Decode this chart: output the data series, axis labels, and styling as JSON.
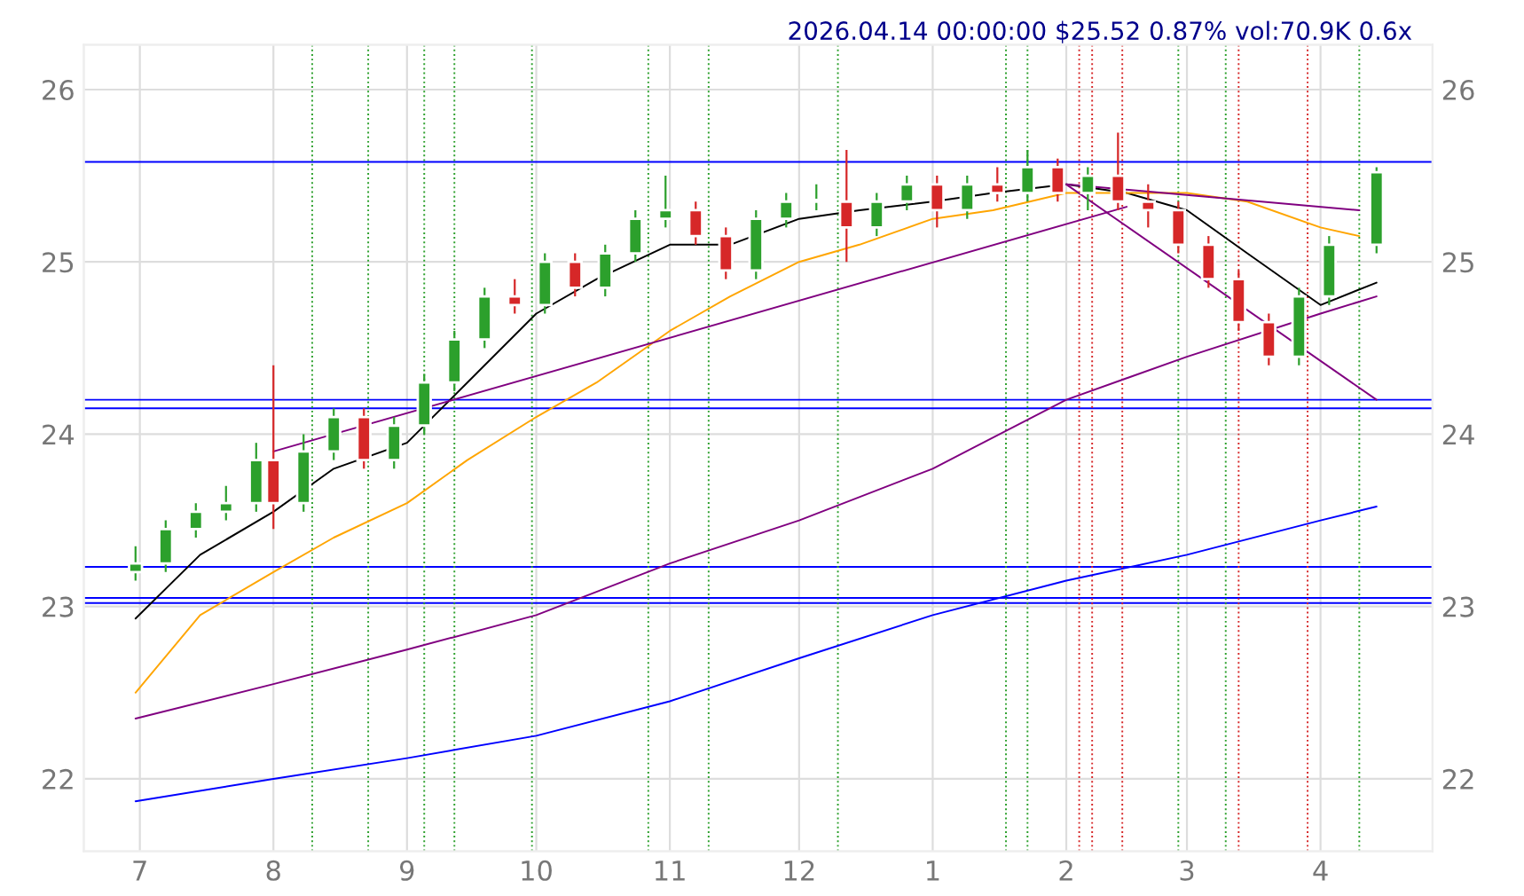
{
  "chart_data": {
    "type": "candlestick",
    "title": "2026.04.14 00:00:00 $25.52 0.87% vol:70.9K 0.6x",
    "x": [
      "2025-06-30",
      "2025-07-07",
      "2025-07-14",
      "2025-07-21",
      "2025-07-28",
      "2025-08-01",
      "2025-08-08",
      "2025-08-15",
      "2025-08-22",
      "2025-08-29",
      "2025-09-05",
      "2025-09-12",
      "2025-09-19",
      "2025-09-26",
      "2025-10-03",
      "2025-10-10",
      "2025-10-17",
      "2025-10-24",
      "2025-10-31",
      "2025-11-07",
      "2025-11-14",
      "2025-11-21",
      "2025-11-28",
      "2025-12-05",
      "2025-12-12",
      "2025-12-19",
      "2025-12-26",
      "2026-01-02",
      "2026-01-09",
      "2026-01-16",
      "2026-01-23",
      "2026-01-30",
      "2026-02-06",
      "2026-02-13",
      "2026-02-20",
      "2026-02-27",
      "2026-03-06",
      "2026-03-13",
      "2026-03-20",
      "2026-03-27",
      "2026-04-03",
      "2026-04-14"
    ],
    "ohlc": [
      [
        23.2,
        23.35,
        23.15,
        23.25
      ],
      [
        23.25,
        23.5,
        23.2,
        23.45
      ],
      [
        23.45,
        23.6,
        23.4,
        23.55
      ],
      [
        23.55,
        23.7,
        23.5,
        23.6
      ],
      [
        23.6,
        23.95,
        23.55,
        23.85
      ],
      [
        23.85,
        24.4,
        23.45,
        23.6
      ],
      [
        23.6,
        24.0,
        23.55,
        23.9
      ],
      [
        23.9,
        24.15,
        23.85,
        24.1
      ],
      [
        24.1,
        24.15,
        23.8,
        23.85
      ],
      [
        23.85,
        24.1,
        23.8,
        24.05
      ],
      [
        24.05,
        24.35,
        24.0,
        24.3
      ],
      [
        24.3,
        24.6,
        24.25,
        24.55
      ],
      [
        24.55,
        24.85,
        24.5,
        24.8
      ],
      [
        24.8,
        24.9,
        24.7,
        24.75
      ],
      [
        24.75,
        25.05,
        24.7,
        25.0
      ],
      [
        25.0,
        25.05,
        24.8,
        24.85
      ],
      [
        24.85,
        25.1,
        24.8,
        25.05
      ],
      [
        25.05,
        25.3,
        25.0,
        25.25
      ],
      [
        25.25,
        25.5,
        25.2,
        25.3
      ],
      [
        25.3,
        25.35,
        25.1,
        25.15
      ],
      [
        25.15,
        25.2,
        24.9,
        24.95
      ],
      [
        24.95,
        25.3,
        24.9,
        25.25
      ],
      [
        25.25,
        25.4,
        25.2,
        25.35
      ],
      [
        25.35,
        25.45,
        25.3,
        25.35
      ],
      [
        25.35,
        25.65,
        25.0,
        25.2
      ],
      [
        25.2,
        25.4,
        25.15,
        25.35
      ],
      [
        25.35,
        25.5,
        25.3,
        25.45
      ],
      [
        25.45,
        25.5,
        25.2,
        25.3
      ],
      [
        25.3,
        25.5,
        25.25,
        25.45
      ],
      [
        25.45,
        25.55,
        25.35,
        25.4
      ],
      [
        25.4,
        25.65,
        25.35,
        25.55
      ],
      [
        25.55,
        25.6,
        25.35,
        25.4
      ],
      [
        25.4,
        25.55,
        25.3,
        25.5
      ],
      [
        25.5,
        25.75,
        25.3,
        25.35
      ],
      [
        25.35,
        25.45,
        25.2,
        25.3
      ],
      [
        25.3,
        25.35,
        25.05,
        25.1
      ],
      [
        25.1,
        25.15,
        24.85,
        24.9
      ],
      [
        24.9,
        24.95,
        24.6,
        24.65
      ],
      [
        24.65,
        24.7,
        24.4,
        24.45
      ],
      [
        24.45,
        24.85,
        24.4,
        24.8
      ],
      [
        24.8,
        25.15,
        24.75,
        25.1
      ],
      [
        25.1,
        25.55,
        25.05,
        25.52
      ]
    ],
    "series": [
      {
        "type": "line",
        "color": "#000000",
        "x": [
          "2025-06-30",
          "2025-07-15",
          "2025-08-01",
          "2025-08-15",
          "2025-09-01",
          "2025-09-15",
          "2025-10-01",
          "2025-10-15",
          "2025-11-01",
          "2025-11-15",
          "2025-12-01",
          "2025-12-15",
          "2026-01-01",
          "2026-01-15",
          "2026-02-01",
          "2026-02-15",
          "2026-03-01",
          "2026-03-15",
          "2026-04-01",
          "2026-04-14"
        ],
        "values": [
          22.93,
          23.3,
          23.55,
          23.8,
          23.95,
          24.3,
          24.7,
          24.9,
          25.1,
          25.1,
          25.25,
          25.3,
          25.35,
          25.4,
          25.45,
          25.4,
          25.3,
          25.05,
          24.75,
          24.88
        ]
      },
      {
        "type": "line",
        "color": "#ffa500",
        "x": [
          "2025-06-30",
          "2025-07-15",
          "2025-08-01",
          "2025-08-15",
          "2025-09-01",
          "2025-09-15",
          "2025-10-01",
          "2025-10-15",
          "2025-11-01",
          "2025-11-15",
          "2025-12-01",
          "2025-12-15",
          "2026-01-01",
          "2026-01-15",
          "2026-02-01",
          "2026-02-15",
          "2026-03-01",
          "2026-03-15",
          "2026-04-01",
          "2026-04-10"
        ],
        "values": [
          22.5,
          22.95,
          23.2,
          23.4,
          23.6,
          23.85,
          24.1,
          24.3,
          24.6,
          24.8,
          25.0,
          25.1,
          25.25,
          25.3,
          25.4,
          25.4,
          25.4,
          25.35,
          25.2,
          25.15
        ]
      },
      {
        "type": "line",
        "color": "#800080",
        "x": [
          "2025-06-30",
          "2025-08-01",
          "2025-09-01",
          "2025-10-01",
          "2025-11-01",
          "2025-12-01",
          "2026-01-01",
          "2026-02-01",
          "2026-03-01",
          "2026-04-01",
          "2026-04-14"
        ],
        "values": [
          22.35,
          22.55,
          22.75,
          22.95,
          23.25,
          23.5,
          23.8,
          24.2,
          24.45,
          24.7,
          24.8
        ]
      },
      {
        "type": "line",
        "color": "#0000ff",
        "x": [
          "2025-06-30",
          "2025-08-01",
          "2025-09-01",
          "2025-10-01",
          "2025-11-01",
          "2025-12-01",
          "2026-01-01",
          "2026-02-01",
          "2026-03-01",
          "2026-04-01",
          "2026-04-14"
        ],
        "values": [
          21.87,
          22.0,
          22.12,
          22.25,
          22.45,
          22.7,
          22.95,
          23.15,
          23.3,
          23.5,
          23.58
        ]
      },
      {
        "type": "line",
        "color": "#800080",
        "x": [
          "2025-08-01",
          "2026-02-15"
        ],
        "values": [
          23.9,
          25.32
        ]
      },
      {
        "type": "line",
        "color": "#800080",
        "x": [
          "2026-02-01",
          "2026-04-14"
        ],
        "values": [
          25.45,
          24.2
        ]
      },
      {
        "type": "line",
        "color": "#800080",
        "x": [
          "2026-02-01",
          "2026-04-10"
        ],
        "values": [
          25.45,
          25.3
        ]
      }
    ],
    "ref_lines": [
      {
        "axis": "y",
        "value": 25.58,
        "color": "#0000ff"
      },
      {
        "axis": "y",
        "value": 24.2,
        "color": "#0000ff"
      },
      {
        "axis": "y",
        "value": 24.15,
        "color": "#0000ff"
      },
      {
        "axis": "y",
        "value": 23.23,
        "color": "#0000ff"
      },
      {
        "axis": "y",
        "value": 23.05,
        "color": "#0000ff"
      },
      {
        "axis": "y",
        "value": 23.02,
        "color": "#0000ff"
      },
      {
        "axis": "x",
        "value": "2025-08-10",
        "color": "#2ca02c",
        "line_style": "dotted"
      },
      {
        "axis": "x",
        "value": "2025-08-23",
        "color": "#2ca02c",
        "line_style": "dotted"
      },
      {
        "axis": "x",
        "value": "2025-09-05",
        "color": "#2ca02c",
        "line_style": "dotted"
      },
      {
        "axis": "x",
        "value": "2025-09-12",
        "color": "#2ca02c",
        "line_style": "dotted"
      },
      {
        "axis": "x",
        "value": "2025-09-30",
        "color": "#2ca02c",
        "line_style": "dotted"
      },
      {
        "axis": "x",
        "value": "2025-10-27",
        "color": "#2ca02c",
        "line_style": "dotted"
      },
      {
        "axis": "x",
        "value": "2025-11-10",
        "color": "#2ca02c",
        "line_style": "dotted"
      },
      {
        "axis": "x",
        "value": "2025-12-10",
        "color": "#2ca02c",
        "line_style": "dotted"
      },
      {
        "axis": "x",
        "value": "2026-01-18",
        "color": "#2ca02c",
        "line_style": "dotted"
      },
      {
        "axis": "x",
        "value": "2026-01-23",
        "color": "#2ca02c",
        "line_style": "dotted"
      },
      {
        "axis": "x",
        "value": "2026-02-04",
        "color": "#d62728",
        "line_style": "dotted"
      },
      {
        "axis": "x",
        "value": "2026-02-07",
        "color": "#d62728",
        "line_style": "dotted"
      },
      {
        "axis": "x",
        "value": "2026-02-14",
        "color": "#d62728",
        "line_style": "dotted"
      },
      {
        "axis": "x",
        "value": "2026-02-27",
        "color": "#2ca02c",
        "line_style": "dotted"
      },
      {
        "axis": "x",
        "value": "2026-03-10",
        "color": "#2ca02c",
        "line_style": "dotted"
      },
      {
        "axis": "x",
        "value": "2026-03-13",
        "color": "#d62728",
        "line_style": "dotted"
      },
      {
        "axis": "x",
        "value": "2026-03-29",
        "color": "#d62728",
        "line_style": "dotted"
      },
      {
        "axis": "x",
        "value": "2026-04-10",
        "color": "#2ca02c",
        "line_style": "dotted"
      }
    ],
    "xlim": [
      "2025-06-18",
      "2026-04-27"
    ],
    "xticks": [
      {
        "value": "2025-07-01",
        "label": "7"
      },
      {
        "value": "2025-08-01",
        "label": "8"
      },
      {
        "value": "2025-09-01",
        "label": "9"
      },
      {
        "value": "2025-10-01",
        "label": "10"
      },
      {
        "value": "2025-11-01",
        "label": "11"
      },
      {
        "value": "2025-12-01",
        "label": "12"
      },
      {
        "value": "2026-01-01",
        "label": "1"
      },
      {
        "value": "2026-02-01",
        "label": "2"
      },
      {
        "value": "2026-03-01",
        "label": "3"
      },
      {
        "value": "2026-04-01",
        "label": "4"
      }
    ],
    "ylim": [
      21.58,
      26.26
    ],
    "yticks": [
      22,
      23,
      24,
      25,
      26
    ],
    "y2lim": [
      21.58,
      26.26
    ],
    "y2ticks": [
      22,
      23,
      24,
      25,
      26
    ],
    "grid": true
  }
}
